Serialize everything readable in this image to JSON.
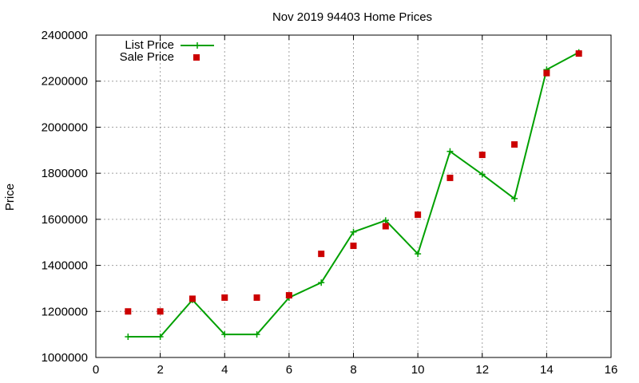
{
  "chart_data": {
    "type": "line",
    "title": "Nov 2019 94403 Home Prices",
    "xlabel": "",
    "ylabel": "Price",
    "xlim": [
      0,
      16
    ],
    "ylim": [
      1000000,
      2400000
    ],
    "x_ticks": [
      "0",
      "2",
      "4",
      "6",
      "8",
      "10",
      "12",
      "14",
      "16"
    ],
    "y_ticks": [
      "1000000",
      "1200000",
      "1400000",
      "1600000",
      "1800000",
      "2000000",
      "2200000",
      "2400000"
    ],
    "grid": true,
    "legend_position": "top-left",
    "series": [
      {
        "name": "List Price",
        "style": "line-plus-markers",
        "color": "#00a000",
        "x": [
          1,
          2,
          3,
          4,
          5,
          6,
          7,
          8,
          9,
          10,
          11,
          12,
          13,
          14,
          15
        ],
        "y": [
          1090000,
          1090000,
          1250000,
          1100000,
          1100000,
          1260000,
          1325000,
          1545000,
          1595000,
          1450000,
          1895000,
          1795000,
          1690000,
          2250000,
          2325000
        ]
      },
      {
        "name": "Sale Price",
        "style": "square-markers",
        "color": "#cc0000",
        "x": [
          1,
          2,
          3,
          4,
          5,
          6,
          7,
          8,
          9,
          10,
          11,
          12,
          13,
          14,
          15
        ],
        "y": [
          1200000,
          1200000,
          1255000,
          1260000,
          1260000,
          1270000,
          1450000,
          1485000,
          1570000,
          1620000,
          1780000,
          1880000,
          1925000,
          2235000,
          2320000
        ]
      }
    ]
  }
}
